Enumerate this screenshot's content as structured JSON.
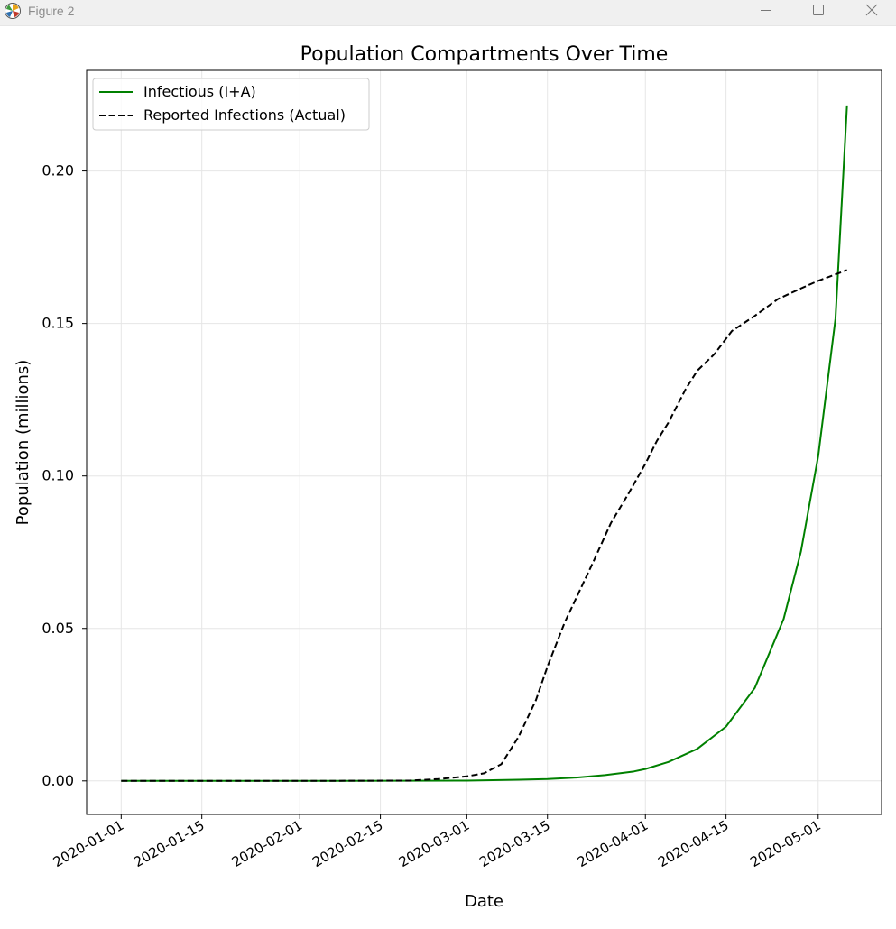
{
  "window": {
    "title": "Figure 2",
    "controls": {
      "minimize_icon": "minimize-icon",
      "maximize_icon": "maximize-icon",
      "close_icon": "close-icon"
    }
  },
  "chart_data": {
    "type": "line",
    "title": "Population Compartments Over Time",
    "xlabel": "Date",
    "ylabel": "Population (millions)",
    "x_type": "date",
    "xlim": [
      "2019-12-26",
      "2020-05-12"
    ],
    "ylim": [
      -0.011,
      0.233
    ],
    "x_ticks": [
      "2020-01-01",
      "2020-01-15",
      "2020-02-01",
      "2020-02-15",
      "2020-03-01",
      "2020-03-15",
      "2020-04-01",
      "2020-04-15",
      "2020-05-01"
    ],
    "y_ticks": [
      0.0,
      0.05,
      0.1,
      0.15,
      0.2
    ],
    "y_tick_labels": [
      "0.00",
      "0.05",
      "0.10",
      "0.15",
      "0.20"
    ],
    "grid": true,
    "legend_position": "top-left",
    "series": [
      {
        "name": "Infectious (I+A)",
        "color": "#008000",
        "style": "solid",
        "x": [
          "2020-01-01",
          "2020-02-01",
          "2020-03-01",
          "2020-03-10",
          "2020-03-15",
          "2020-03-20",
          "2020-03-25",
          "2020-03-30",
          "2020-04-01",
          "2020-04-05",
          "2020-04-10",
          "2020-04-15",
          "2020-04-20",
          "2020-04-25",
          "2020-04-28",
          "2020-05-01",
          "2020-05-04",
          "2020-05-06"
        ],
        "values": [
          0.0,
          0.0,
          0.0001,
          0.0004,
          0.0006,
          0.0011,
          0.0019,
          0.0031,
          0.0039,
          0.0062,
          0.0105,
          0.0178,
          0.0305,
          0.0531,
          0.0752,
          0.1065,
          0.1516,
          0.2215
        ]
      },
      {
        "name": "Reported Infections (Actual)",
        "color": "#000000",
        "style": "dashed",
        "x": [
          "2020-01-01",
          "2020-02-01",
          "2020-02-20",
          "2020-02-25",
          "2020-03-01",
          "2020-03-04",
          "2020-03-07",
          "2020-03-10",
          "2020-03-13",
          "2020-03-15",
          "2020-03-18",
          "2020-03-20",
          "2020-03-23",
          "2020-03-26",
          "2020-03-29",
          "2020-04-01",
          "2020-04-03",
          "2020-04-05",
          "2020-04-08",
          "2020-04-10",
          "2020-04-13",
          "2020-04-16",
          "2020-04-20",
          "2020-04-24",
          "2020-04-28",
          "2020-05-01",
          "2020-05-06"
        ],
        "values": [
          0.0,
          0.0,
          0.0001,
          0.0006,
          0.0015,
          0.0025,
          0.0055,
          0.0145,
          0.0265,
          0.0375,
          0.052,
          0.06,
          0.072,
          0.0845,
          0.094,
          0.104,
          0.1115,
          0.1175,
          0.1285,
          0.1345,
          0.14,
          0.1475,
          0.1525,
          0.158,
          0.1615,
          0.164,
          0.1675
        ]
      }
    ]
  }
}
